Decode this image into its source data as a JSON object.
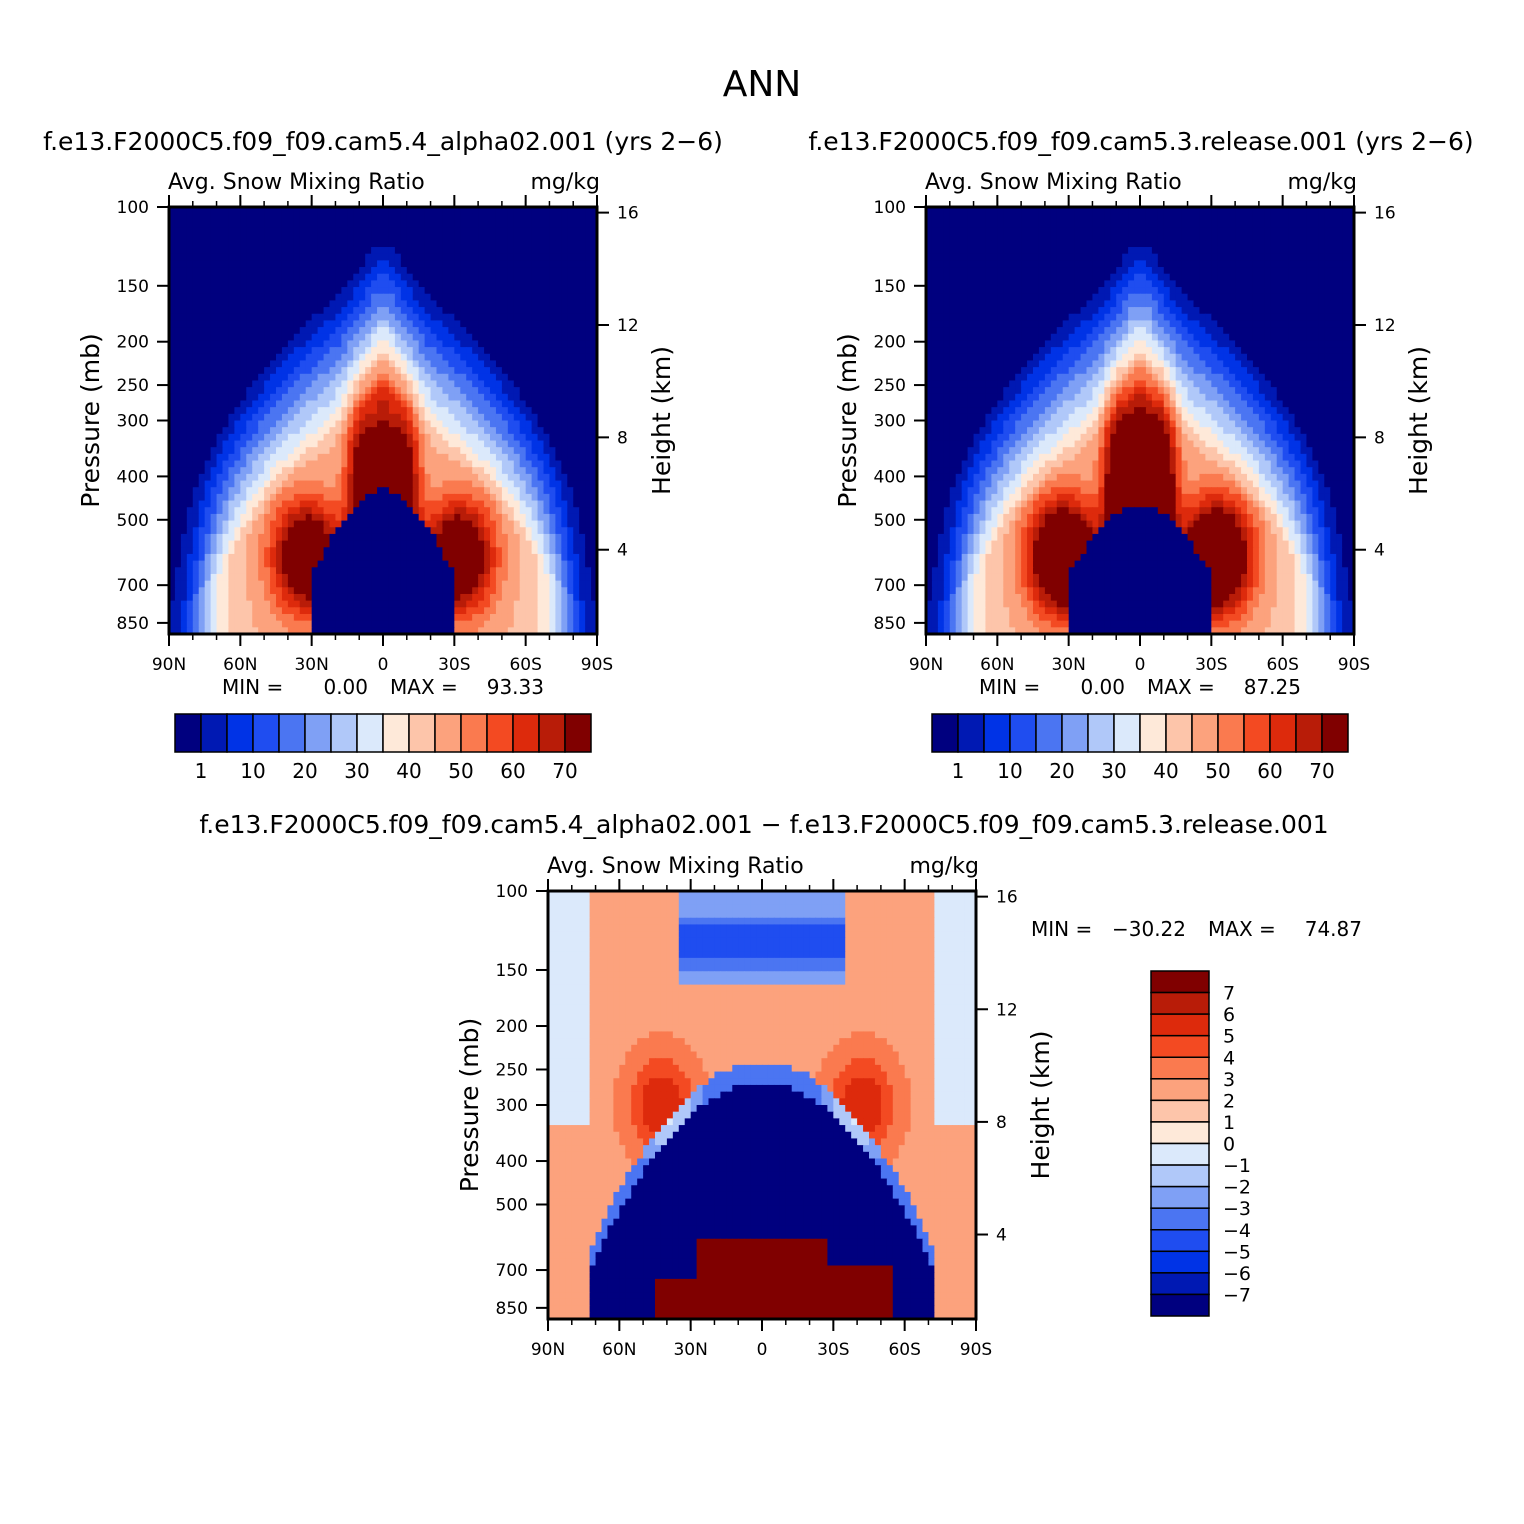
{
  "figure_title": "ANN",
  "colors": {
    "levels": [
      "#00007f",
      "#0019b3",
      "#0033e6",
      "#1f4df0",
      "#4b75f2",
      "#7fa0f5",
      "#b0c8f9",
      "#dbe9fb",
      "#fee9d9",
      "#fdc5aa",
      "#fca27d",
      "#fa7a4f",
      "#f34a22",
      "#dd2a0c",
      "#b81c08",
      "#800000"
    ]
  },
  "chart_data": [
    {
      "type": "heatmap",
      "panel": "top-left",
      "case_title": "f.e13.F2000C5.f09_f09.cam5.4_alpha02.001 (yrs 2−6)",
      "variable": "Avg. Snow Mixing Ratio",
      "units": "mg/kg",
      "xlabel": "",
      "ylabel": "Pressure (mb)",
      "y2label": "Height (km)",
      "x_ticks": [
        "90N",
        "60N",
        "30N",
        "0",
        "30S",
        "60S",
        "90S"
      ],
      "x_range": [
        90,
        -90
      ],
      "y_ticks": [
        "100",
        "150",
        "200",
        "250",
        "300",
        "400",
        "500",
        "700",
        "850"
      ],
      "y_range_mb": [
        100,
        900
      ],
      "y2_ticks": [
        "16",
        "12",
        "8",
        "4"
      ],
      "min_label": "MIN =",
      "min_value": "0.00",
      "max_label": "MAX =",
      "max_value": "93.33",
      "colorbar_labels": [
        "1",
        "10",
        "20",
        "30",
        "40",
        "50",
        "60",
        "70"
      ],
      "colorbar_location": "bottom",
      "features": {
        "lobe_scale": 1.0,
        "blue_dome_peak": 0.22
      }
    },
    {
      "type": "heatmap",
      "panel": "top-right",
      "case_title": "f.e13.F2000C5.f09_f09.cam5.3.release.001 (yrs 2−6)",
      "variable": "Avg. Snow Mixing Ratio",
      "units": "mg/kg",
      "xlabel": "",
      "ylabel": "Pressure (mb)",
      "y2label": "Height (km)",
      "x_ticks": [
        "90N",
        "60N",
        "30N",
        "0",
        "30S",
        "60S",
        "90S"
      ],
      "x_range": [
        90,
        -90
      ],
      "y_ticks": [
        "100",
        "150",
        "200",
        "250",
        "300",
        "400",
        "500",
        "700",
        "850"
      ],
      "y_range_mb": [
        100,
        900
      ],
      "y2_ticks": [
        "16",
        "12",
        "8",
        "4"
      ],
      "min_label": "MIN =",
      "min_value": "0.00",
      "max_label": "MAX =",
      "max_value": "87.25",
      "colorbar_labels": [
        "1",
        "10",
        "20",
        "30",
        "40",
        "50",
        "60",
        "70"
      ],
      "colorbar_location": "bottom",
      "features": {
        "lobe_scale": 1.25,
        "blue_dome_peak": 0.18
      }
    },
    {
      "type": "heatmap",
      "panel": "bottom-difference",
      "case_title": "f.e13.F2000C5.f09_f09.cam5.4_alpha02.001 − f.e13.F2000C5.f09_f09.cam5.3.release.001",
      "variable": "Avg. Snow Mixing Ratio",
      "units": "mg/kg",
      "xlabel": "",
      "ylabel": "Pressure (mb)",
      "y2label": "Height (km)",
      "x_ticks": [
        "90N",
        "60N",
        "30N",
        "0",
        "30S",
        "60S",
        "90S"
      ],
      "x_range": [
        90,
        -90
      ],
      "y_ticks": [
        "100",
        "150",
        "200",
        "250",
        "300",
        "400",
        "500",
        "700",
        "850"
      ],
      "y_range_mb": [
        100,
        900
      ],
      "y2_ticks": [
        "16",
        "12",
        "8",
        "4"
      ],
      "min_label": "MIN =",
      "min_value": "−30.22",
      "max_label": "MAX =",
      "max_value": "74.87",
      "colorbar_labels": [
        "7",
        "6",
        "5",
        "4",
        "3",
        "2",
        "1",
        "0",
        "−1",
        "−2",
        "−3",
        "−4",
        "−5",
        "−6",
        "−7"
      ],
      "colorbar_location": "right",
      "contour_range": [
        -7,
        7
      ]
    }
  ]
}
